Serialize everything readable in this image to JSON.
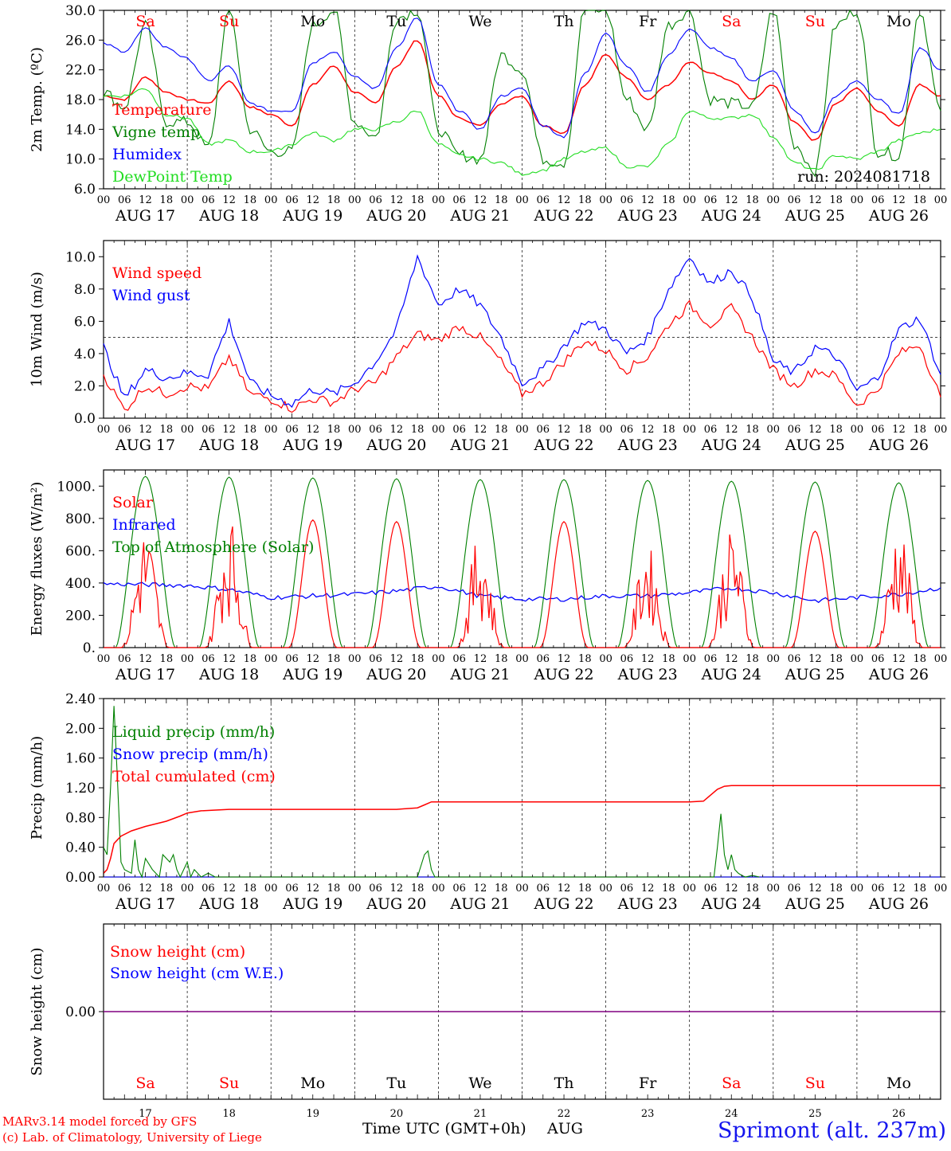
{
  "page": {
    "run_label": "run: 2024081718",
    "footer_line1": "MARv3.14 model forced by GFS",
    "footer_line2": "(c) Lab. of Climatology, University of Liege",
    "footer_xlabel": "Time UTC (GMT+0h)",
    "footer_month": "AUG",
    "station": "Sprimont (alt. 237m)"
  },
  "days": [
    {
      "abbr": "Sa",
      "weekend": true,
      "date": "AUG 17",
      "num": "17"
    },
    {
      "abbr": "Su",
      "weekend": true,
      "date": "AUG 18",
      "num": "18"
    },
    {
      "abbr": "Mo",
      "weekend": false,
      "date": "AUG 19",
      "num": "19"
    },
    {
      "abbr": "Tu",
      "weekend": false,
      "date": "AUG 20",
      "num": "20"
    },
    {
      "abbr": "We",
      "weekend": false,
      "date": "AUG 21",
      "num": "21"
    },
    {
      "abbr": "Th",
      "weekend": false,
      "date": "AUG 22",
      "num": "22"
    },
    {
      "abbr": "Fr",
      "weekend": false,
      "date": "AUG 23",
      "num": "23"
    },
    {
      "abbr": "Sa",
      "weekend": true,
      "date": "AUG 24",
      "num": "24"
    },
    {
      "abbr": "Su",
      "weekend": true,
      "date": "AUG 25",
      "num": "25"
    },
    {
      "abbr": "Mo",
      "weekend": false,
      "date": "AUG 26",
      "num": "26"
    }
  ],
  "hour_ticks": [
    "00",
    "06",
    "12",
    "18"
  ],
  "end_tick": "00",
  "colors": {
    "red": "#ff0000",
    "green": "#008000",
    "blue": "#0000ff",
    "lightgreen": "#22dd22",
    "purple": "#800080",
    "station": "#1515ee"
  },
  "chart_data": [
    {
      "id": "temperature",
      "type": "line",
      "ylabel": "2m Temp. (ºC)",
      "ylim": [
        6,
        30
      ],
      "yticks": [
        "6.0",
        "10.0",
        "14.0",
        "18.0",
        "22.0",
        "26.0",
        "30.0"
      ],
      "x_unit": "hours since AUG 17 00 UTC",
      "x": [
        0,
        6,
        12,
        18,
        24,
        30,
        36,
        42,
        48,
        54,
        60,
        66,
        72,
        78,
        84,
        90,
        96,
        102,
        108,
        114,
        120,
        126,
        132,
        138,
        144,
        150,
        156,
        162,
        168,
        174,
        180,
        186,
        192,
        198,
        204,
        210,
        216,
        222,
        228,
        234,
        240
      ],
      "series": [
        {
          "name": "Temperature",
          "color": "red",
          "values": [
            18.5,
            18.0,
            21.0,
            19.0,
            18.0,
            17.5,
            20.5,
            17.0,
            16.0,
            14.5,
            20.0,
            22.5,
            19.0,
            17.5,
            22.5,
            26.0,
            18.5,
            15.5,
            14.5,
            17.5,
            18.5,
            14.5,
            13.5,
            20.0,
            24.0,
            21.0,
            18.0,
            20.0,
            23.0,
            21.5,
            20.5,
            18.0,
            20.0,
            15.0,
            12.5,
            17.5,
            19.5,
            16.5,
            14.5,
            20.0,
            18.5
          ]
        },
        {
          "name": "Vigne temp",
          "color": "green",
          "values": [
            19.0,
            17.0,
            28.0,
            15.0,
            15.0,
            11.5,
            30.0,
            14.0,
            11.0,
            11.0,
            28.0,
            30.0,
            15.0,
            13.0,
            29.0,
            30.0,
            14.0,
            10.5,
            10.0,
            24.0,
            22.0,
            10.0,
            9.5,
            30.0,
            30.0,
            18.0,
            14.0,
            28.0,
            30.0,
            18.0,
            17.5,
            17.0,
            30.0,
            12.0,
            8.5,
            28.0,
            30.0,
            11.0,
            10.5,
            30.0,
            16.5
          ]
        },
        {
          "name": "Humidex",
          "color": "blue",
          "values": [
            25.5,
            24.5,
            27.5,
            25.0,
            23.5,
            20.5,
            22.5,
            17.5,
            16.5,
            16.5,
            23.0,
            24.5,
            21.0,
            19.5,
            25.0,
            29.0,
            20.0,
            16.5,
            14.0,
            18.5,
            19.5,
            14.5,
            13.0,
            21.5,
            27.0,
            22.5,
            19.0,
            24.0,
            27.5,
            25.0,
            23.5,
            20.5,
            22.0,
            16.5,
            13.5,
            18.5,
            20.5,
            18.0,
            16.0,
            25.0,
            22.0
          ]
        },
        {
          "name": "DewPoint Temp",
          "color": "lightgreen",
          "values": [
            18.5,
            18.5,
            19.5,
            16.0,
            15.5,
            12.0,
            12.5,
            11.0,
            11.0,
            12.0,
            13.5,
            12.5,
            14.0,
            14.0,
            15.0,
            16.5,
            12.0,
            10.5,
            10.0,
            9.5,
            8.0,
            8.5,
            10.0,
            11.0,
            11.5,
            9.0,
            9.0,
            12.0,
            16.5,
            15.5,
            15.5,
            16.0,
            13.0,
            9.5,
            8.5,
            10.5,
            10.0,
            11.0,
            12.5,
            13.5,
            14.0
          ]
        }
      ]
    },
    {
      "id": "wind",
      "type": "line",
      "ylabel": "10m Wind (m/s)",
      "ylim": [
        0,
        11
      ],
      "yticks": [
        "0.0",
        "2.0",
        "4.0",
        "6.0",
        "8.0",
        "10.0"
      ],
      "reference_line": 5.0,
      "x": [
        0,
        6,
        12,
        18,
        24,
        30,
        36,
        42,
        48,
        54,
        60,
        66,
        72,
        78,
        84,
        90,
        96,
        102,
        108,
        114,
        120,
        126,
        132,
        138,
        144,
        150,
        156,
        162,
        168,
        174,
        180,
        186,
        192,
        198,
        204,
        210,
        216,
        222,
        228,
        234,
        240
      ],
      "series": [
        {
          "name": "Wind speed",
          "color": "red",
          "values": [
            2.7,
            0.5,
            2.0,
            1.5,
            2.0,
            1.8,
            3.8,
            1.5,
            1.2,
            0.6,
            1.2,
            1.0,
            1.8,
            2.2,
            3.8,
            5.2,
            4.8,
            5.7,
            5.0,
            3.5,
            1.5,
            2.2,
            3.5,
            4.8,
            4.2,
            3.0,
            3.8,
            5.8,
            7.0,
            5.8,
            6.8,
            5.0,
            3.0,
            2.0,
            3.0,
            2.6,
            0.8,
            1.8,
            4.0,
            4.6,
            1.3
          ]
        },
        {
          "name": "Wind gust",
          "color": "blue",
          "values": [
            4.4,
            1.2,
            3.0,
            2.5,
            2.8,
            2.7,
            6.0,
            2.2,
            1.4,
            0.9,
            1.8,
            1.5,
            2.2,
            3.5,
            5.5,
            10.0,
            7.0,
            8.0,
            7.0,
            5.0,
            2.2,
            3.0,
            4.5,
            6.0,
            5.5,
            4.0,
            5.0,
            8.0,
            10.0,
            8.3,
            9.2,
            7.5,
            3.5,
            2.8,
            4.4,
            3.8,
            1.7,
            2.5,
            5.5,
            6.2,
            2.7
          ]
        }
      ]
    },
    {
      "id": "energy",
      "type": "line",
      "ylabel": "Energy fluxes (W/m²)",
      "ylim": [
        0,
        1100
      ],
      "yticks": [
        "0.",
        "200.",
        "400.",
        "600.",
        "800.",
        "1000."
      ],
      "series": [
        {
          "name": "Solar",
          "color": "red",
          "day_peaks": [
            670,
            750,
            790,
            780,
            650,
            780,
            600,
            700,
            720,
            700
          ],
          "day_noisy": [
            true,
            true,
            false,
            false,
            true,
            false,
            true,
            true,
            false,
            true
          ]
        },
        {
          "name": "Infrared",
          "color": "blue",
          "x": [
            0,
            12,
            24,
            36,
            48,
            60,
            72,
            84,
            96,
            108,
            120,
            132,
            144,
            156,
            168,
            180,
            192,
            204,
            216,
            228,
            240
          ],
          "values": [
            395,
            390,
            385,
            360,
            310,
            320,
            330,
            350,
            380,
            320,
            300,
            300,
            320,
            320,
            340,
            370,
            340,
            290,
            310,
            330,
            370
          ]
        },
        {
          "name": "Top of Atmosphere (Solar)",
          "color": "green",
          "day_peaks": [
            1060,
            1055,
            1050,
            1045,
            1040,
            1040,
            1035,
            1030,
            1025,
            1020
          ]
        }
      ]
    },
    {
      "id": "precip",
      "type": "line",
      "ylabel": "Precip (mm/h)",
      "ylim": [
        0,
        2.4
      ],
      "yticks": [
        "0.00",
        "0.40",
        "0.80",
        "1.20",
        "1.60",
        "2.00",
        "2.40"
      ],
      "series": [
        {
          "name": "Liquid precip (mm/h)",
          "color": "green",
          "x": [
            0,
            1,
            2,
            3,
            4,
            5,
            6,
            8,
            9,
            10,
            11,
            12,
            14,
            16,
            17,
            19,
            20,
            21,
            22,
            24,
            25,
            26,
            28,
            30,
            32,
            90,
            92,
            93,
            94,
            95,
            96,
            97,
            175,
            176,
            177,
            178,
            179,
            180,
            181,
            182,
            183,
            184,
            186,
            188
          ],
          "values": [
            0.4,
            0.3,
            1.2,
            2.3,
            1.3,
            0.2,
            0.1,
            0.05,
            0.5,
            0.1,
            0.0,
            0.25,
            0.1,
            0.0,
            0.3,
            0.2,
            0.3,
            0.1,
            0.0,
            0.2,
            0.0,
            0.1,
            0.0,
            0.05,
            0.0,
            0.0,
            0.3,
            0.35,
            0.1,
            0.0,
            0.0,
            0.0,
            0.0,
            0.4,
            0.85,
            0.3,
            0.1,
            0.3,
            0.1,
            0.05,
            0.02,
            0.0,
            0.02,
            0.0
          ]
        },
        {
          "name": "Snow precip (mm/h)",
          "color": "blue",
          "values": [
            0.0
          ]
        },
        {
          "name": "Total cumulated (cm)",
          "color": "red",
          "x": [
            0,
            1,
            2,
            3,
            4,
            5,
            8,
            12,
            18,
            22,
            24,
            28,
            36,
            48,
            72,
            84,
            90,
            92,
            94,
            96,
            120,
            144,
            168,
            172,
            174,
            176,
            178,
            180,
            240
          ],
          "values": [
            0.05,
            0.1,
            0.25,
            0.45,
            0.5,
            0.55,
            0.62,
            0.68,
            0.75,
            0.82,
            0.86,
            0.89,
            0.91,
            0.91,
            0.91,
            0.91,
            0.93,
            0.97,
            1.01,
            1.01,
            1.01,
            1.01,
            1.01,
            1.02,
            1.1,
            1.18,
            1.22,
            1.23,
            1.23
          ]
        }
      ]
    },
    {
      "id": "snow",
      "type": "line",
      "ylabel": "Snow height (cm)",
      "yticks": [
        "0.00"
      ],
      "series": [
        {
          "name": "Snow height (cm)",
          "color": "red",
          "values": [
            0.0
          ]
        },
        {
          "name": "Snow height (cm W.E.)",
          "color": "blue",
          "values": [
            0.0
          ]
        }
      ]
    }
  ]
}
